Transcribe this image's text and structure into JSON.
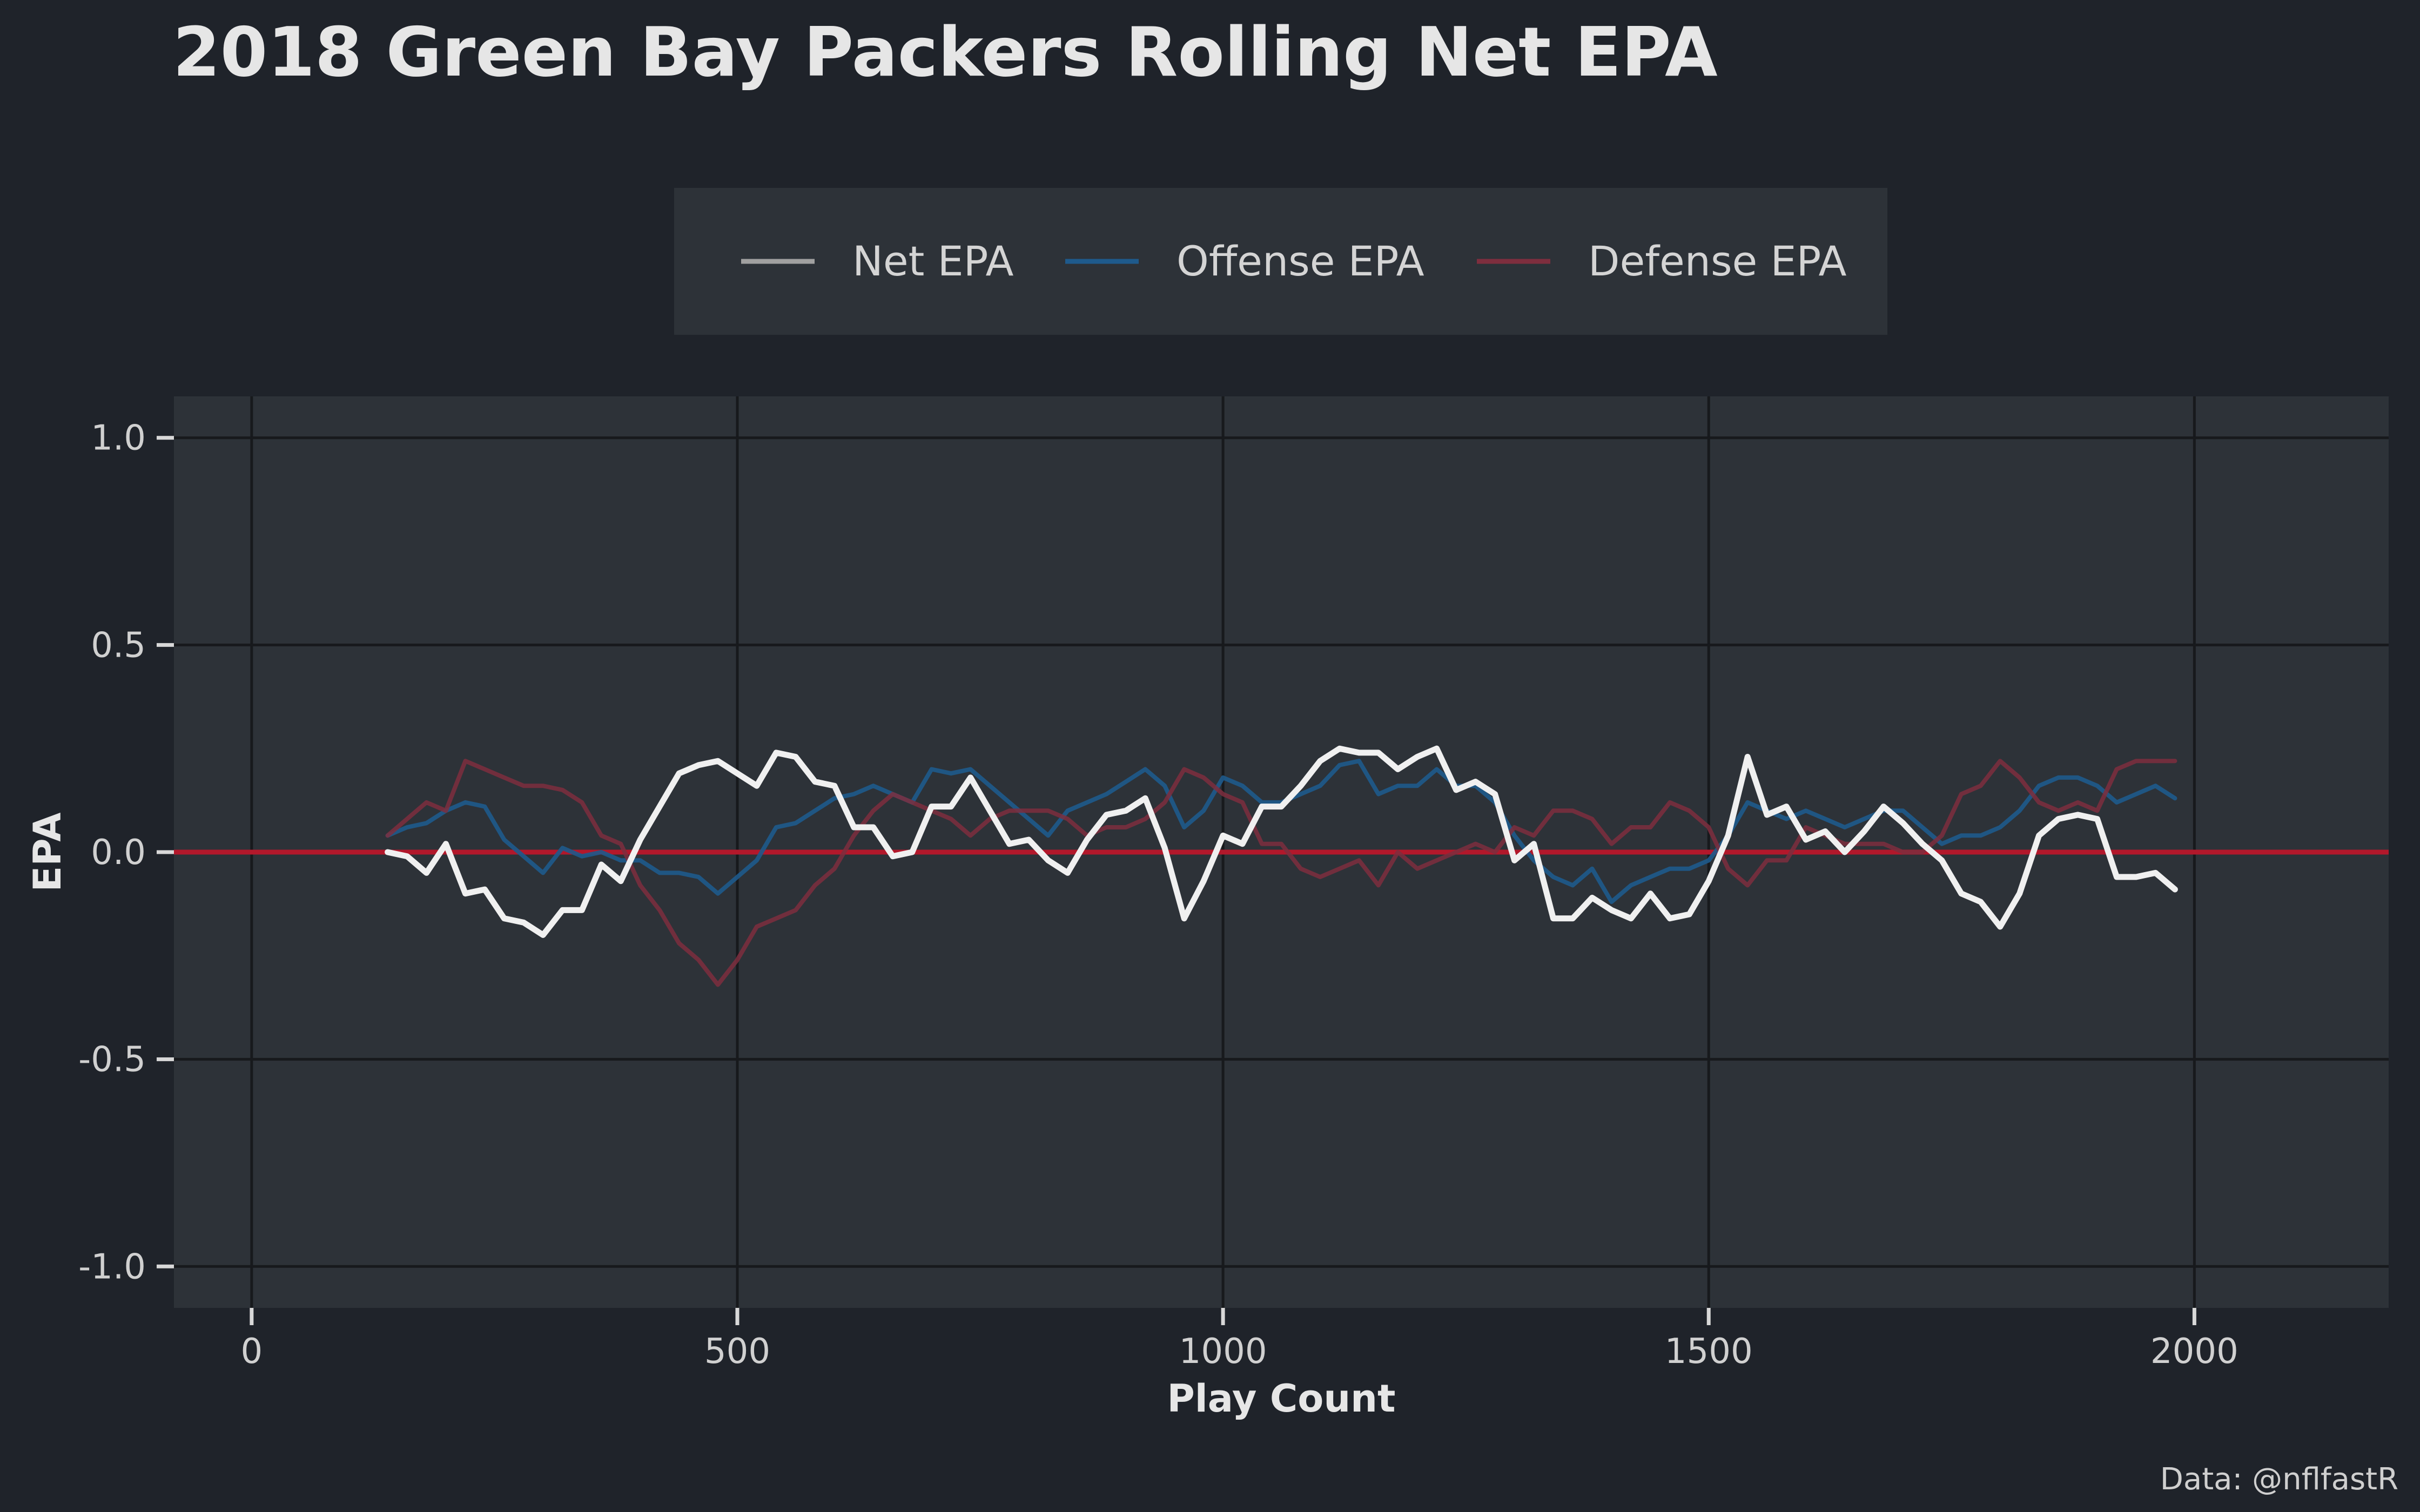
{
  "colors": {
    "background": "#1f232a",
    "panel": "#2d3238",
    "grid": "#17191c",
    "zero_line": "#b2182b",
    "net": "#f0f0f0",
    "offense": "#1e5a8c",
    "defense": "#7e2e3e",
    "legend_bg": "#2d3238"
  },
  "chart_data": {
    "type": "line",
    "title": "2018 Green Bay Packers Rolling Net EPA",
    "xlabel": "Play Count",
    "ylabel": "EPA",
    "caption": "Data: @nflfastR",
    "xlim": [
      -80,
      2200
    ],
    "ylim": [
      -1.1,
      1.1
    ],
    "x_ticks": [
      0,
      500,
      1000,
      1500,
      2000
    ],
    "x_tick_labels": [
      "0",
      "500",
      "1000",
      "1500",
      "2000"
    ],
    "y_ticks": [
      1.0,
      0.5,
      0.0,
      -0.5,
      -1.0
    ],
    "y_tick_labels": [
      "1.0",
      "0.5",
      "0.0",
      "-0.5",
      "-1.0"
    ],
    "hline": 0,
    "legend_position": "top",
    "grid": true,
    "x": [
      140,
      160,
      180,
      200,
      220,
      240,
      260,
      280,
      300,
      320,
      340,
      360,
      380,
      400,
      420,
      440,
      460,
      480,
      500,
      520,
      540,
      560,
      580,
      600,
      620,
      640,
      660,
      680,
      700,
      720,
      740,
      760,
      780,
      800,
      820,
      840,
      860,
      880,
      900,
      920,
      940,
      960,
      980,
      1000,
      1020,
      1040,
      1060,
      1080,
      1100,
      1120,
      1140,
      1160,
      1180,
      1200,
      1220,
      1240,
      1260,
      1280,
      1300,
      1320,
      1340,
      1360,
      1380,
      1400,
      1420,
      1440,
      1460,
      1480,
      1500,
      1520,
      1540,
      1560,
      1580,
      1600,
      1620,
      1640,
      1660,
      1680,
      1700,
      1720,
      1740,
      1760,
      1780,
      1800,
      1820,
      1840,
      1860,
      1880,
      1900,
      1920,
      1940,
      1960,
      1980
    ],
    "series": [
      {
        "name": "Net EPA",
        "color": "#f0f0f0",
        "values": [
          0.0,
          -0.01,
          -0.05,
          0.02,
          -0.1,
          -0.09,
          -0.16,
          -0.17,
          -0.2,
          -0.14,
          -0.14,
          -0.03,
          -0.07,
          0.03,
          0.11,
          0.19,
          0.21,
          0.22,
          0.19,
          0.16,
          0.24,
          0.23,
          0.17,
          0.16,
          0.06,
          0.06,
          -0.01,
          0.0,
          0.11,
          0.11,
          0.18,
          0.1,
          0.02,
          0.03,
          -0.02,
          -0.05,
          0.03,
          0.09,
          0.1,
          0.13,
          0.01,
          -0.16,
          -0.07,
          0.04,
          0.02,
          0.11,
          0.11,
          0.16,
          0.22,
          0.25,
          0.24,
          0.24,
          0.2,
          0.23,
          0.25,
          0.15,
          0.17,
          0.14,
          -0.02,
          0.02,
          -0.16,
          -0.16,
          -0.11,
          -0.14,
          -0.16,
          -0.1,
          -0.16,
          -0.15,
          -0.07,
          0.04,
          0.23,
          0.09,
          0.11,
          0.03,
          0.05,
          0.0,
          0.05,
          0.11,
          0.07,
          0.02,
          -0.02,
          -0.1,
          -0.12,
          -0.18,
          -0.1,
          0.04,
          0.08,
          0.09,
          0.08,
          -0.06,
          -0.06,
          -0.05,
          -0.09
        ]
      },
      {
        "name": "Offense EPA",
        "color": "#1e5a8c",
        "values": [
          0.04,
          0.06,
          0.07,
          0.1,
          0.12,
          0.11,
          0.03,
          -0.01,
          -0.05,
          0.01,
          -0.01,
          0.0,
          -0.02,
          -0.02,
          -0.05,
          -0.05,
          -0.06,
          -0.1,
          -0.06,
          -0.02,
          0.06,
          0.07,
          0.1,
          0.13,
          0.14,
          0.16,
          0.14,
          0.12,
          0.2,
          0.19,
          0.2,
          0.16,
          0.12,
          0.08,
          0.04,
          0.1,
          0.12,
          0.14,
          0.17,
          0.2,
          0.16,
          0.06,
          0.1,
          0.18,
          0.16,
          0.12,
          0.12,
          0.14,
          0.16,
          0.21,
          0.22,
          0.14,
          0.16,
          0.16,
          0.2,
          0.16,
          0.16,
          0.12,
          0.04,
          -0.02,
          -0.06,
          -0.08,
          -0.04,
          -0.12,
          -0.08,
          -0.06,
          -0.04,
          -0.04,
          -0.02,
          0.04,
          0.12,
          0.1,
          0.08,
          0.1,
          0.08,
          0.06,
          0.08,
          0.1,
          0.1,
          0.06,
          0.02,
          0.04,
          0.04,
          0.06,
          0.1,
          0.16,
          0.18,
          0.18,
          0.16,
          0.12,
          0.14,
          0.16,
          0.13
        ]
      },
      {
        "name": "Defense EPA",
        "color": "#7e2e3e",
        "values": [
          0.04,
          0.08,
          0.12,
          0.1,
          0.22,
          0.2,
          0.18,
          0.16,
          0.16,
          0.15,
          0.12,
          0.04,
          0.02,
          -0.08,
          -0.14,
          -0.22,
          -0.26,
          -0.32,
          -0.26,
          -0.18,
          -0.16,
          -0.14,
          -0.08,
          -0.04,
          0.04,
          0.1,
          0.14,
          0.12,
          0.1,
          0.08,
          0.04,
          0.08,
          0.1,
          0.1,
          0.1,
          0.08,
          0.04,
          0.06,
          0.06,
          0.08,
          0.12,
          0.2,
          0.18,
          0.14,
          0.12,
          0.02,
          0.02,
          -0.04,
          -0.06,
          -0.04,
          -0.02,
          -0.08,
          0.0,
          -0.04,
          -0.02,
          0.0,
          0.02,
          0.0,
          0.06,
          0.04,
          0.1,
          0.1,
          0.08,
          0.02,
          0.06,
          0.06,
          0.12,
          0.1,
          0.06,
          -0.04,
          -0.08,
          -0.02,
          -0.02,
          0.06,
          0.04,
          0.02,
          0.02,
          0.02,
          0.0,
          0.0,
          0.04,
          0.14,
          0.16,
          0.22,
          0.18,
          0.12,
          0.1,
          0.12,
          0.1,
          0.2,
          0.22,
          0.22,
          0.22
        ]
      }
    ]
  }
}
